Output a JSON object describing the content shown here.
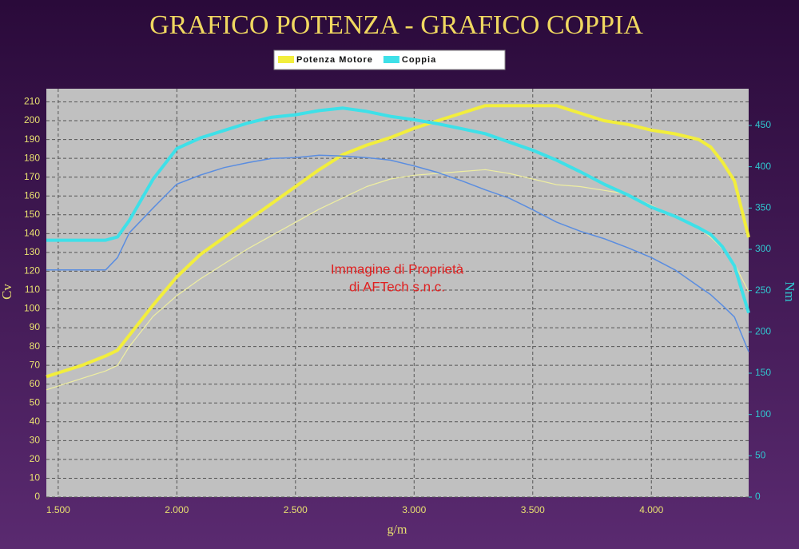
{
  "chart_data": {
    "type": "line",
    "title": "GRAFICO POTENZA - GRAFICO COPPIA",
    "x_label": "g/m",
    "y_label": "Cv",
    "y2_label": "Nm",
    "annotations": [
      "Immagine di Proprietà",
      "di AFTech s.n.c."
    ],
    "x": [
      1450,
      1500,
      1600,
      1700,
      1750,
      1800,
      1900,
      2000,
      2100,
      2200,
      2300,
      2400,
      2500,
      2600,
      2700,
      2800,
      2900,
      3000,
      3100,
      3200,
      3300,
      3400,
      3500,
      3600,
      3700,
      3800,
      3900,
      4000,
      4100,
      4200,
      4250,
      4300,
      4350,
      4410
    ],
    "series": [
      {
        "name": "Potenza Motore",
        "color": "#f2ee3c",
        "line_width": 4,
        "values": [
          64,
          66,
          70,
          75,
          78,
          86,
          102,
          117,
          129,
          138,
          147,
          156,
          165,
          174,
          182,
          187,
          191,
          196,
          200,
          204,
          208,
          208,
          208,
          208,
          204,
          200,
          198,
          195,
          193,
          190,
          186,
          178,
          168,
          138
        ]
      },
      {
        "color": "#eeeea0",
        "line_width": 1.2,
        "values": [
          57,
          59,
          63,
          67,
          70,
          80,
          96,
          107,
          116,
          124,
          132,
          139,
          146,
          153,
          159,
          165,
          169,
          171,
          172,
          173,
          174,
          172,
          169,
          166,
          165,
          163,
          161,
          155,
          149,
          143,
          138,
          132,
          124,
          109
        ]
      },
      {
        "name": "Coppia",
        "color": "#3ee0e8",
        "line_width": 4,
        "axis": "y2",
        "values": [
          311,
          311,
          311,
          311,
          315,
          335,
          385,
          422,
          435,
          444,
          453,
          460,
          463,
          468,
          471,
          467,
          461,
          457,
          452,
          446,
          440,
          430,
          420,
          408,
          394,
          379,
          366,
          351,
          340,
          326,
          318,
          303,
          280,
          223
        ]
      },
      {
        "color": "#5a8de0",
        "line_width": 1.5,
        "axis": "y2",
        "values": [
          275,
          275,
          275,
          275,
          290,
          320,
          350,
          379,
          390,
          399,
          405,
          410,
          411,
          414,
          413,
          411,
          408,
          401,
          393,
          383,
          372,
          362,
          348,
          333,
          322,
          313,
          302,
          290,
          275,
          255,
          245,
          232,
          218,
          176
        ]
      }
    ],
    "xlim": [
      1450,
      4410
    ],
    "xticks": [
      {
        "value": 1500,
        "label": "1.500"
      },
      {
        "value": 2000,
        "label": "2.000"
      },
      {
        "value": 2500,
        "label": "2.500"
      },
      {
        "value": 3000,
        "label": "3.000"
      },
      {
        "value": 3500,
        "label": "3.500"
      },
      {
        "value": 4000,
        "label": "4.000"
      }
    ],
    "ylim": [
      0,
      217
    ],
    "yticks": [
      0,
      10,
      20,
      30,
      40,
      50,
      60,
      70,
      80,
      90,
      100,
      110,
      120,
      130,
      140,
      150,
      160,
      170,
      180,
      190,
      200,
      210
    ],
    "y2lim": [
      0,
      494.5
    ],
    "y2ticks": [
      0,
      50,
      100,
      150,
      200,
      250,
      300,
      350,
      400,
      450
    ],
    "grid": true
  }
}
